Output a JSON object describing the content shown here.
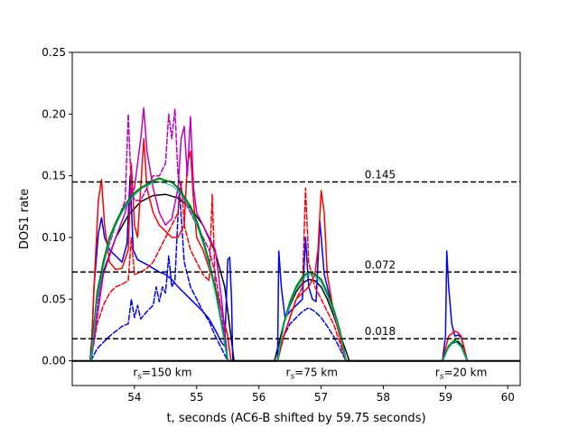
{
  "chart_data": {
    "type": "line",
    "xlabel": "t, seconds (AC6-B shifted by 59.75 seconds)",
    "ylabel": "DOS1 rate",
    "xlim": [
      53.0,
      60.2
    ],
    "ylim": [
      -0.02,
      0.25
    ],
    "xticks": [
      54,
      55,
      56,
      57,
      58,
      59,
      60
    ],
    "yticks": [
      0.0,
      0.05,
      0.1,
      0.15,
      0.2,
      0.25
    ],
    "xtick_labels": [
      "54",
      "55",
      "56",
      "57",
      "58",
      "59",
      "60"
    ],
    "ytick_labels": [
      "0.00",
      "0.05",
      "0.10",
      "0.15",
      "0.20",
      "0.25"
    ],
    "grid": false,
    "reference_lines": [
      {
        "y": 0.145,
        "label": "0.145",
        "label_x": 57.7
      },
      {
        "y": 0.072,
        "label": "0.072",
        "label_x": 57.7
      },
      {
        "y": 0.018,
        "label": "0.018",
        "label_x": 57.7
      }
    ],
    "annotations": [
      {
        "x": 54.45,
        "y": -0.008,
        "base": "r",
        "sub": "s",
        "text": "=150 km"
      },
      {
        "x": 56.85,
        "y": -0.008,
        "base": "r",
        "sub": "s",
        "text": "=75 km"
      },
      {
        "x": 59.25,
        "y": -0.008,
        "base": "r",
        "sub": "s",
        "text": "=20 km"
      }
    ],
    "series": [
      {
        "color": "#000000",
        "dash": "solid",
        "width": 1.5,
        "x": [
          53.0,
          53.29,
          53.3,
          53.4,
          53.5,
          53.7,
          53.9,
          54.1,
          54.3,
          54.5,
          54.7,
          54.9,
          55.1,
          55.3,
          55.45,
          55.55,
          55.6,
          56.25,
          56.3,
          56.4,
          56.5,
          56.6,
          56.7,
          56.8,
          56.9,
          57.0,
          57.1,
          57.2,
          57.3,
          57.4,
          57.45,
          58.95,
          59.0,
          59.05,
          59.1,
          59.2,
          59.3,
          59.35,
          60.2
        ],
        "y": [
          0,
          0,
          0.01,
          0.05,
          0.072,
          0.1,
          0.118,
          0.129,
          0.134,
          0.135,
          0.132,
          0.124,
          0.11,
          0.088,
          0.06,
          0.02,
          0,
          0,
          0.01,
          0.03,
          0.045,
          0.056,
          0.063,
          0.066,
          0.065,
          0.06,
          0.05,
          0.037,
          0.022,
          0.008,
          0,
          0,
          0.006,
          0.011,
          0.014,
          0.016,
          0.01,
          0,
          0
        ]
      },
      {
        "color": "#0000ff",
        "dash": "solid",
        "width": 1.5,
        "x": [
          53.3,
          53.35,
          53.42,
          53.47,
          53.52,
          53.6,
          53.7,
          53.8,
          53.88,
          53.93,
          53.98,
          54.05,
          54.2,
          54.3,
          54.4,
          54.5,
          54.6,
          54.7,
          54.8,
          54.9,
          55.0,
          55.1,
          55.2,
          55.3,
          55.4,
          55.45,
          55.5,
          55.53,
          55.56,
          55.58,
          55.62,
          56.3,
          56.32,
          56.36,
          56.42,
          56.5,
          56.6,
          56.7,
          56.75,
          56.8,
          56.86,
          56.92,
          56.98,
          57.05,
          57.15,
          57.25,
          57.35,
          57.4,
          58.95,
          59.0,
          59.02,
          59.05,
          59.1,
          59.15,
          59.2,
          59.25,
          59.3,
          59.35
        ],
        "y": [
          0.0,
          0.06,
          0.103,
          0.116,
          0.1,
          0.09,
          0.085,
          0.08,
          0.095,
          0.15,
          0.09,
          0.082,
          0.078,
          0.075,
          0.072,
          0.07,
          0.066,
          0.06,
          0.055,
          0.05,
          0.045,
          0.04,
          0.034,
          0.025,
          0.015,
          0.012,
          0.082,
          0.084,
          0.05,
          0.0,
          0.0,
          0.0,
          0.089,
          0.06,
          0.035,
          0.04,
          0.045,
          0.05,
          0.1,
          0.06,
          0.05,
          0.048,
          0.113,
          0.07,
          0.05,
          0.03,
          0.01,
          0.0,
          0.0,
          0.02,
          0.089,
          0.06,
          0.03,
          0.02,
          0.021,
          0.019,
          0.01,
          0.0
        ]
      },
      {
        "color": "#0000ff",
        "dash": "dashed",
        "width": 1.5,
        "x": [
          53.3,
          53.4,
          53.5,
          53.6,
          53.7,
          53.8,
          53.9,
          53.95,
          54.0,
          54.05,
          54.1,
          54.2,
          54.3,
          54.35,
          54.4,
          54.45,
          54.5,
          54.55,
          54.6,
          54.65,
          54.72,
          54.8,
          54.9,
          55.0,
          55.1,
          55.2,
          55.3,
          55.4,
          55.5,
          56.3,
          56.35,
          56.4,
          56.5,
          56.6,
          56.7,
          56.8,
          56.9,
          57.0,
          57.1,
          57.2,
          57.3,
          57.4
        ],
        "y": [
          0.0,
          0.01,
          0.015,
          0.02,
          0.024,
          0.028,
          0.03,
          0.05,
          0.035,
          0.045,
          0.034,
          0.04,
          0.045,
          0.06,
          0.048,
          0.06,
          0.055,
          0.085,
          0.06,
          0.065,
          0.14,
          0.08,
          0.06,
          0.05,
          0.04,
          0.032,
          0.02,
          0.01,
          0.0,
          0.0,
          0.01,
          0.02,
          0.03,
          0.035,
          0.04,
          0.043,
          0.04,
          0.035,
          0.028,
          0.02,
          0.01,
          0.0
        ]
      },
      {
        "color": "#ff0000",
        "dash": "solid",
        "width": 1.5,
        "x": [
          53.3,
          53.35,
          53.42,
          53.47,
          53.52,
          53.6,
          53.7,
          53.8,
          53.9,
          53.95,
          54.0,
          54.05,
          54.1,
          54.15,
          54.2,
          54.3,
          54.4,
          54.5,
          54.6,
          54.7,
          54.8,
          54.85,
          54.9,
          54.95,
          55.0,
          55.1,
          55.2,
          55.3,
          55.4,
          55.5,
          55.55,
          56.3,
          56.4,
          56.5,
          56.6,
          56.7,
          56.8,
          56.9,
          56.95,
          57.0,
          57.05,
          57.1,
          57.2,
          57.3,
          57.4,
          58.95,
          59.0,
          59.05,
          59.1,
          59.15,
          59.2,
          59.25,
          59.3,
          59.35
        ],
        "y": [
          0.0,
          0.06,
          0.13,
          0.147,
          0.11,
          0.08,
          0.074,
          0.075,
          0.09,
          0.16,
          0.11,
          0.1,
          0.14,
          0.18,
          0.14,
          0.12,
          0.11,
          0.105,
          0.1,
          0.1,
          0.11,
          0.16,
          0.17,
          0.13,
          0.1,
          0.09,
          0.075,
          0.06,
          0.04,
          0.02,
          0.0,
          0.0,
          0.02,
          0.035,
          0.05,
          0.055,
          0.06,
          0.07,
          0.09,
          0.138,
          0.12,
          0.07,
          0.04,
          0.02,
          0.0,
          0.0,
          0.01,
          0.02,
          0.022,
          0.024,
          0.023,
          0.02,
          0.01,
          0.0
        ]
      },
      {
        "color": "#ff0000",
        "dash": "dashed",
        "width": 1.5,
        "x": [
          53.3,
          53.4,
          53.5,
          53.6,
          53.7,
          53.8,
          53.9,
          53.95,
          54.0,
          54.1,
          54.2,
          54.3,
          54.4,
          54.5,
          54.6,
          54.7,
          54.75,
          54.8,
          54.9,
          55.0,
          55.1,
          55.2,
          55.25,
          55.3,
          55.4,
          55.5,
          56.3,
          56.4,
          56.5,
          56.6,
          56.7,
          56.75,
          56.8,
          56.9,
          57.0,
          57.1,
          57.2,
          57.3,
          57.4
        ],
        "y": [
          0.0,
          0.03,
          0.045,
          0.055,
          0.06,
          0.062,
          0.065,
          0.1,
          0.07,
          0.072,
          0.075,
          0.08,
          0.09,
          0.1,
          0.11,
          0.12,
          0.145,
          0.11,
          0.09,
          0.08,
          0.07,
          0.065,
          0.135,
          0.06,
          0.03,
          0.0,
          0.0,
          0.02,
          0.035,
          0.05,
          0.06,
          0.14,
          0.08,
          0.06,
          0.05,
          0.04,
          0.03,
          0.015,
          0.0
        ]
      },
      {
        "color": "#bf00bf",
        "dash": "solid",
        "width": 1.5,
        "x": [
          53.3,
          53.5,
          53.7,
          53.85,
          53.9,
          54.0,
          54.1,
          54.15,
          54.2,
          54.3,
          54.4,
          54.5,
          54.6,
          54.7,
          54.75,
          54.8,
          54.85,
          54.9,
          54.95,
          55.0,
          55.1,
          55.2,
          55.3,
          55.4,
          55.5
        ],
        "y": [
          0.0,
          0.07,
          0.1,
          0.12,
          0.13,
          0.14,
          0.18,
          0.205,
          0.17,
          0.14,
          0.12,
          0.11,
          0.115,
          0.14,
          0.18,
          0.19,
          0.15,
          0.198,
          0.14,
          0.12,
          0.11,
          0.1,
          0.09,
          0.05,
          0.0
        ]
      },
      {
        "color": "#bf00bf",
        "dash": "dashed",
        "width": 1.5,
        "x": [
          53.3,
          53.5,
          53.7,
          53.85,
          53.9,
          53.95,
          54.0,
          54.1,
          54.2,
          54.3,
          54.4,
          54.5,
          54.55,
          54.6,
          54.65,
          54.7,
          54.8,
          54.9,
          55.0,
          55.1,
          55.2,
          55.3,
          55.4,
          55.5
        ],
        "y": [
          0.0,
          0.08,
          0.11,
          0.13,
          0.2,
          0.14,
          0.13,
          0.13,
          0.14,
          0.15,
          0.15,
          0.16,
          0.2,
          0.18,
          0.204,
          0.15,
          0.13,
          0.12,
          0.11,
          0.1,
          0.09,
          0.07,
          0.04,
          0.0
        ]
      },
      {
        "color": "#008000",
        "dash": "solid",
        "width": 2.0,
        "x": [
          53.3,
          53.4,
          53.5,
          53.6,
          53.7,
          53.8,
          53.9,
          54.0,
          54.1,
          54.2,
          54.3,
          54.4,
          54.5,
          54.6,
          54.7,
          54.8,
          54.9,
          55.0,
          55.1,
          55.2,
          55.3,
          55.4,
          55.5,
          56.3,
          56.4,
          56.5,
          56.6,
          56.7,
          56.8,
          56.9,
          57.0,
          57.1,
          57.2,
          57.3,
          57.4,
          58.95,
          59.05,
          59.15,
          59.25,
          59.35
        ],
        "y": [
          0.0,
          0.055,
          0.08,
          0.1,
          0.112,
          0.122,
          0.13,
          0.136,
          0.14,
          0.143,
          0.146,
          0.148,
          0.146,
          0.145,
          0.14,
          0.133,
          0.125,
          0.113,
          0.098,
          0.08,
          0.058,
          0.03,
          0.0,
          0.0,
          0.03,
          0.048,
          0.06,
          0.068,
          0.072,
          0.07,
          0.066,
          0.055,
          0.042,
          0.025,
          0.0,
          0.0,
          0.012,
          0.017,
          0.012,
          0.0
        ]
      },
      {
        "color": "#00bfbf",
        "dash": "solid",
        "width": 1.0,
        "x": [
          53.3,
          53.4,
          53.5,
          53.6,
          53.7,
          53.8,
          53.9,
          54.0,
          54.1,
          54.2,
          54.3,
          54.4,
          54.5,
          54.6,
          54.7,
          54.8,
          54.9,
          55.0,
          55.1,
          55.2,
          55.3,
          55.4,
          55.5,
          56.3,
          56.4,
          56.5,
          56.6,
          56.7,
          56.8,
          56.9,
          57.0,
          57.1,
          57.2,
          57.3,
          57.4,
          58.95,
          59.05,
          59.15,
          59.25,
          59.35
        ],
        "y": [
          0.0,
          0.05,
          0.076,
          0.097,
          0.11,
          0.12,
          0.128,
          0.134,
          0.139,
          0.142,
          0.144,
          0.145,
          0.144,
          0.142,
          0.138,
          0.131,
          0.122,
          0.11,
          0.095,
          0.077,
          0.055,
          0.028,
          0.0,
          0.0,
          0.028,
          0.046,
          0.058,
          0.066,
          0.07,
          0.068,
          0.064,
          0.053,
          0.04,
          0.023,
          0.0,
          0.0,
          0.011,
          0.016,
          0.011,
          0.0
        ]
      },
      {
        "color": "#000000",
        "dash": "solid",
        "width": 2.0,
        "x": [
          53.0,
          60.2
        ],
        "y": [
          0,
          0
        ]
      }
    ]
  }
}
